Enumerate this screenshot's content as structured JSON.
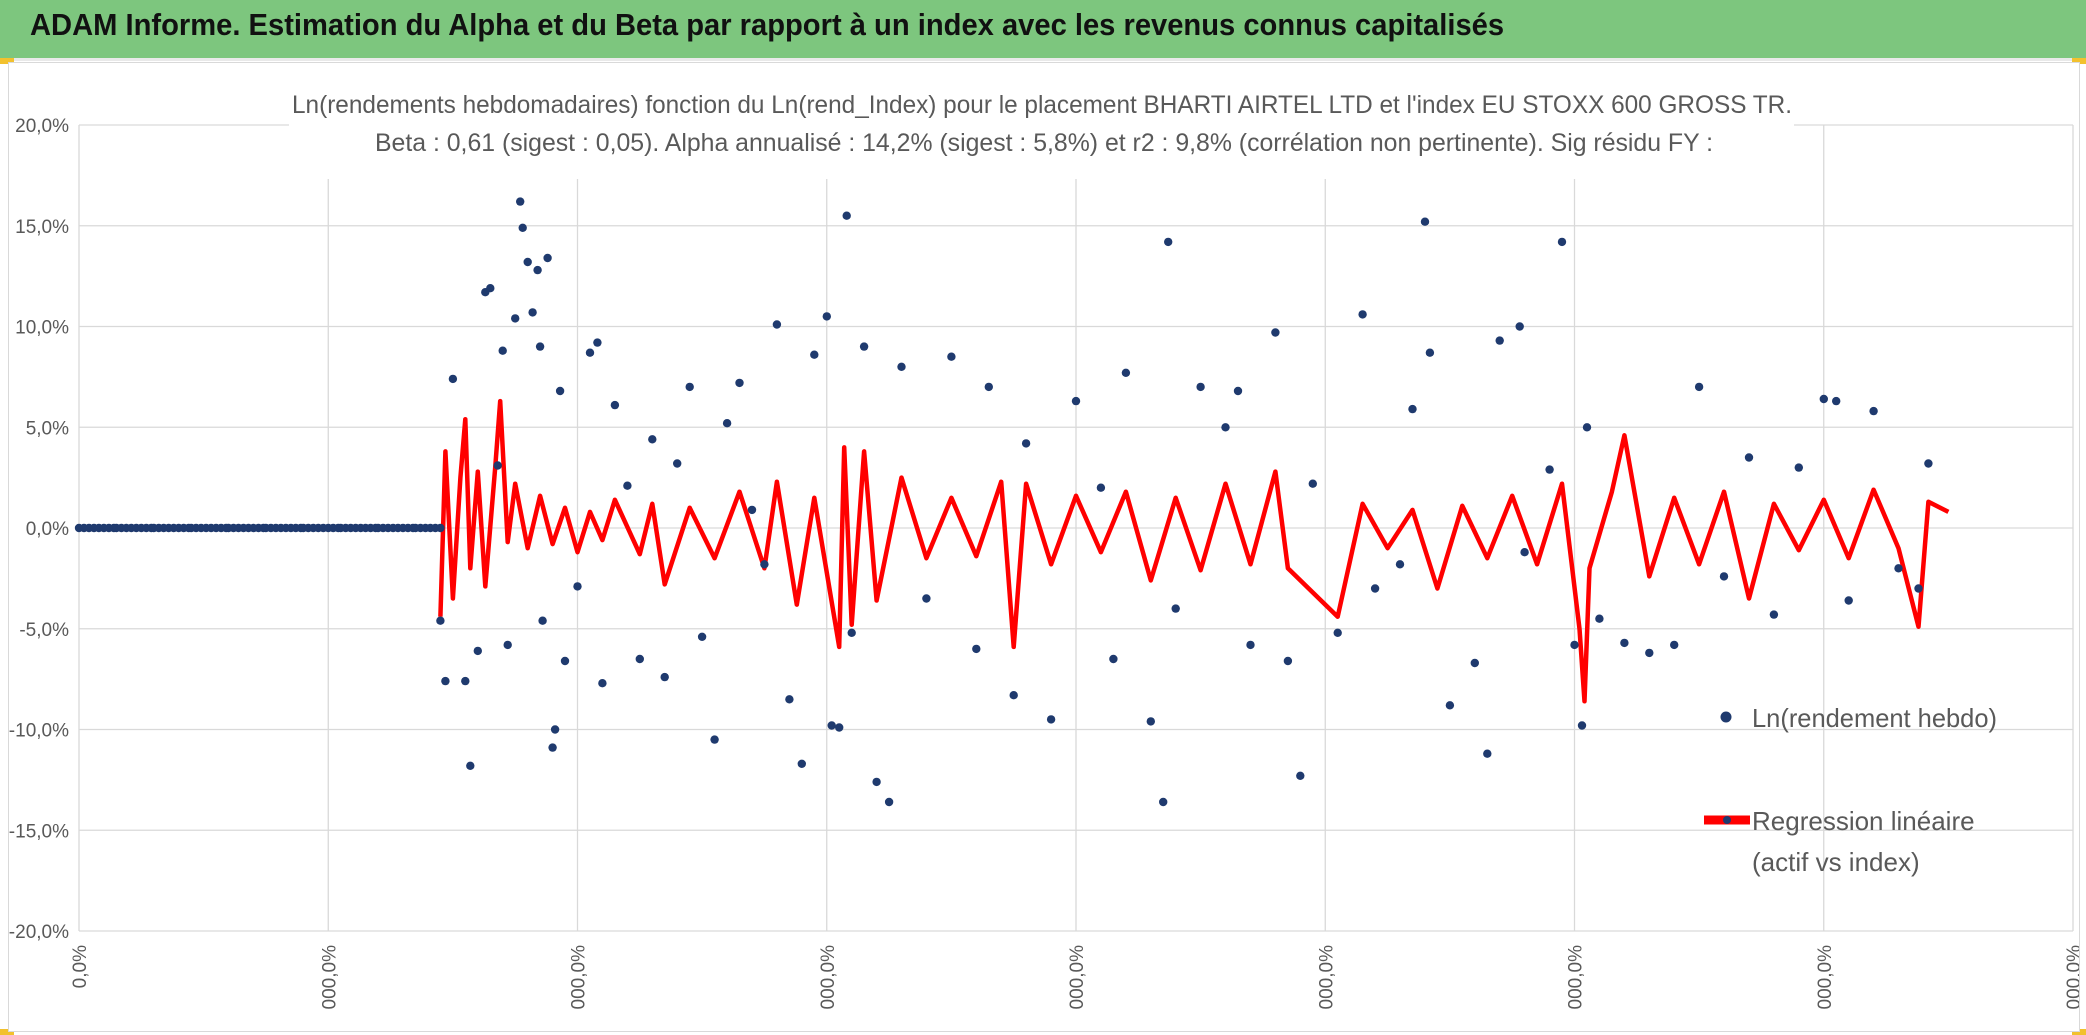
{
  "banner": {
    "title": "ADAM Informe. Estimation du Alpha et du Beta par rapport à un index avec les revenus connus capitalisés"
  },
  "colors": {
    "banner": "#7dc67e",
    "accent_corner": "#f2c12e",
    "scatter": "#1f3a6e",
    "regression": "#ff0000",
    "grid": "#d9d9d9",
    "text": "#595959"
  },
  "chart_data": {
    "type": "scatter",
    "title": "Ln(rendements hebdomadaires) fonction du Ln(rend_Index) pour le placement BHARTI AIRTEL LTD et l'index EU STOXX 600 GROSS TR.",
    "subtitle": "Beta : 0,61 (sigest : 0,05). Alpha annualisé : 14,2% (sigest : 5,8%) et r2 : 9,8% (corrélation non pertinente). Sig résidu FY :",
    "ylim": [
      -20,
      20
    ],
    "y_ticks": [
      "20,0%",
      "15,0%",
      "10,0%",
      "5,0%",
      "0,0%",
      "-5,0%",
      "-10,0%",
      "-15,0%",
      "-20,0%"
    ],
    "x_ticks": [
      "0,0%",
      "000,0%",
      "000,0%",
      "000,0%",
      "000,0%",
      "000,0%",
      "000,0%",
      "000,0%",
      "000,0%"
    ],
    "grid": true,
    "legend": {
      "position": "right",
      "items": [
        "Ln(rendement hebdo)",
        "Regression linéaire (actif vs index)"
      ]
    },
    "series": [
      {
        "name": "Ln(rendement hebdo)",
        "kind": "scatter",
        "color": "#1f3a6e",
        "values": [
          [
            0,
            0
          ],
          [
            0.15,
            0
          ],
          [
            0.3,
            0
          ],
          [
            0.45,
            0
          ],
          [
            0.6,
            0
          ],
          [
            0.75,
            0
          ],
          [
            0.9,
            0
          ],
          [
            1.05,
            0
          ],
          [
            1.2,
            0
          ],
          [
            1.35,
            0
          ],
          [
            1.45,
            0
          ],
          [
            1.45,
            -4.6
          ],
          [
            1.47,
            -7.6
          ],
          [
            1.5,
            7.4
          ],
          [
            1.55,
            -7.6
          ],
          [
            1.57,
            -11.8
          ],
          [
            1.6,
            -6.1
          ],
          [
            1.63,
            11.7
          ],
          [
            1.65,
            11.9
          ],
          [
            1.68,
            3.1
          ],
          [
            1.7,
            8.8
          ],
          [
            1.72,
            -5.8
          ],
          [
            1.75,
            10.4
          ],
          [
            1.77,
            16.2
          ],
          [
            1.78,
            14.9
          ],
          [
            1.8,
            13.2
          ],
          [
            1.82,
            10.7
          ],
          [
            1.84,
            12.8
          ],
          [
            1.85,
            9.0
          ],
          [
            1.86,
            -4.6
          ],
          [
            1.88,
            13.4
          ],
          [
            1.9,
            -10.9
          ],
          [
            1.91,
            -10.0
          ],
          [
            1.93,
            6.8
          ],
          [
            1.95,
            -6.6
          ],
          [
            2.0,
            -2.9
          ],
          [
            2.05,
            8.7
          ],
          [
            2.08,
            9.2
          ],
          [
            2.1,
            -7.7
          ],
          [
            2.15,
            6.1
          ],
          [
            2.2,
            2.1
          ],
          [
            2.25,
            -6.5
          ],
          [
            2.3,
            4.4
          ],
          [
            2.35,
            -7.4
          ],
          [
            2.4,
            3.2
          ],
          [
            2.45,
            7.0
          ],
          [
            2.5,
            -5.4
          ],
          [
            2.55,
            -10.5
          ],
          [
            2.6,
            5.2
          ],
          [
            2.65,
            7.2
          ],
          [
            2.7,
            0.9
          ],
          [
            2.75,
            -1.8
          ],
          [
            2.8,
            10.1
          ],
          [
            2.85,
            -8.5
          ],
          [
            2.9,
            -11.7
          ],
          [
            2.95,
            8.6
          ],
          [
            3.0,
            10.5
          ],
          [
            3.02,
            -9.8
          ],
          [
            3.05,
            -9.9
          ],
          [
            3.08,
            15.5
          ],
          [
            3.1,
            -5.2
          ],
          [
            3.15,
            9.0
          ],
          [
            3.2,
            -12.6
          ],
          [
            3.25,
            -13.6
          ],
          [
            3.3,
            8.0
          ],
          [
            3.4,
            -3.5
          ],
          [
            3.5,
            8.5
          ],
          [
            3.6,
            -6.0
          ],
          [
            3.65,
            7.0
          ],
          [
            3.75,
            -8.3
          ],
          [
            3.8,
            4.2
          ],
          [
            3.9,
            -9.5
          ],
          [
            4.0,
            6.3
          ],
          [
            4.1,
            2.0
          ],
          [
            4.15,
            -6.5
          ],
          [
            4.2,
            7.7
          ],
          [
            4.3,
            -9.6
          ],
          [
            4.35,
            -13.6
          ],
          [
            4.37,
            14.2
          ],
          [
            4.4,
            -4.0
          ],
          [
            4.5,
            7.0
          ],
          [
            4.6,
            5.0
          ],
          [
            4.65,
            6.8
          ],
          [
            4.7,
            -5.8
          ],
          [
            4.8,
            9.7
          ],
          [
            4.85,
            -6.6
          ],
          [
            4.9,
            -12.3
          ],
          [
            4.95,
            2.2
          ],
          [
            5.05,
            -5.2
          ],
          [
            5.15,
            10.6
          ],
          [
            5.2,
            -3.0
          ],
          [
            5.3,
            -1.8
          ],
          [
            5.35,
            5.9
          ],
          [
            5.4,
            15.2
          ],
          [
            5.42,
            8.7
          ],
          [
            5.5,
            -8.8
          ],
          [
            5.6,
            -6.7
          ],
          [
            5.65,
            -11.2
          ],
          [
            5.7,
            9.3
          ],
          [
            5.78,
            10.0
          ],
          [
            5.8,
            -1.2
          ],
          [
            5.9,
            2.9
          ],
          [
            5.95,
            14.2
          ],
          [
            6.0,
            -5.8
          ],
          [
            6.03,
            -9.8
          ],
          [
            6.05,
            5.0
          ],
          [
            6.1,
            -4.5
          ],
          [
            6.2,
            -5.7
          ],
          [
            6.3,
            -6.2
          ],
          [
            6.4,
            -5.8
          ],
          [
            6.5,
            7.0
          ],
          [
            6.6,
            -2.4
          ],
          [
            6.7,
            3.5
          ],
          [
            6.8,
            -4.3
          ],
          [
            6.9,
            3.0
          ],
          [
            7.0,
            6.4
          ],
          [
            7.05,
            6.3
          ],
          [
            7.1,
            -3.6
          ],
          [
            7.2,
            5.8
          ],
          [
            7.3,
            -2.0
          ],
          [
            7.38,
            -3.0
          ],
          [
            7.42,
            3.2
          ]
        ]
      },
      {
        "name": "Regression linéaire (actif vs index)",
        "kind": "line",
        "color": "#ff0000",
        "values": [
          [
            1.45,
            -4.4
          ],
          [
            1.47,
            3.8
          ],
          [
            1.5,
            -3.5
          ],
          [
            1.53,
            2.5
          ],
          [
            1.55,
            5.4
          ],
          [
            1.57,
            -2.0
          ],
          [
            1.6,
            2.8
          ],
          [
            1.63,
            -2.9
          ],
          [
            1.67,
            3.0
          ],
          [
            1.69,
            6.3
          ],
          [
            1.72,
            -0.7
          ],
          [
            1.75,
            2.2
          ],
          [
            1.8,
            -1.0
          ],
          [
            1.85,
            1.6
          ],
          [
            1.9,
            -0.8
          ],
          [
            1.95,
            1.0
          ],
          [
            2.0,
            -1.2
          ],
          [
            2.05,
            0.8
          ],
          [
            2.1,
            -0.6
          ],
          [
            2.15,
            1.4
          ],
          [
            2.25,
            -1.3
          ],
          [
            2.3,
            1.2
          ],
          [
            2.35,
            -2.8
          ],
          [
            2.45,
            1.0
          ],
          [
            2.55,
            -1.5
          ],
          [
            2.65,
            1.8
          ],
          [
            2.75,
            -2.0
          ],
          [
            2.8,
            2.3
          ],
          [
            2.88,
            -3.8
          ],
          [
            2.95,
            1.5
          ],
          [
            3.05,
            -5.9
          ],
          [
            3.07,
            4.0
          ],
          [
            3.1,
            -4.8
          ],
          [
            3.15,
            3.8
          ],
          [
            3.2,
            -3.6
          ],
          [
            3.3,
            2.5
          ],
          [
            3.4,
            -1.5
          ],
          [
            3.5,
            1.5
          ],
          [
            3.6,
            -1.4
          ],
          [
            3.7,
            2.3
          ],
          [
            3.75,
            -5.9
          ],
          [
            3.8,
            2.2
          ],
          [
            3.9,
            -1.8
          ],
          [
            4.0,
            1.6
          ],
          [
            4.1,
            -1.2
          ],
          [
            4.2,
            1.8
          ],
          [
            4.3,
            -2.6
          ],
          [
            4.4,
            1.5
          ],
          [
            4.5,
            -2.1
          ],
          [
            4.6,
            2.2
          ],
          [
            4.7,
            -1.8
          ],
          [
            4.8,
            2.8
          ],
          [
            4.85,
            -2.0
          ],
          [
            5.05,
            -4.4
          ],
          [
            5.15,
            1.2
          ],
          [
            5.25,
            -1.0
          ],
          [
            5.35,
            0.9
          ],
          [
            5.45,
            -3.0
          ],
          [
            5.55,
            1.1
          ],
          [
            5.65,
            -1.5
          ],
          [
            5.75,
            1.6
          ],
          [
            5.85,
            -1.8
          ],
          [
            5.95,
            2.2
          ],
          [
            6.02,
            -5.0
          ],
          [
            6.04,
            -8.6
          ],
          [
            6.06,
            -2.0
          ],
          [
            6.15,
            1.8
          ],
          [
            6.2,
            4.6
          ],
          [
            6.3,
            -2.4
          ],
          [
            6.4,
            1.5
          ],
          [
            6.5,
            -1.8
          ],
          [
            6.6,
            1.8
          ],
          [
            6.7,
            -3.5
          ],
          [
            6.8,
            1.2
          ],
          [
            6.9,
            -1.1
          ],
          [
            7.0,
            1.4
          ],
          [
            7.1,
            -1.5
          ],
          [
            7.2,
            1.9
          ],
          [
            7.3,
            -1.0
          ],
          [
            7.38,
            -4.9
          ],
          [
            7.42,
            1.3
          ],
          [
            7.5,
            0.8
          ]
        ]
      }
    ]
  }
}
